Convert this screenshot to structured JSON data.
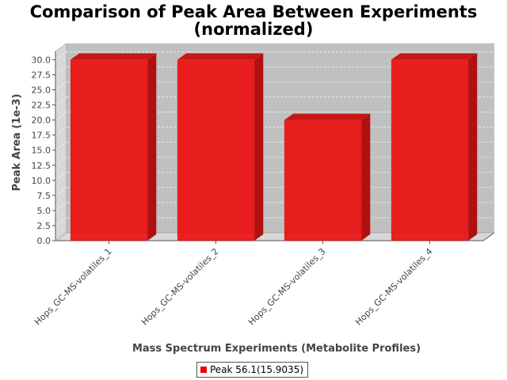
{
  "chart_data": {
    "type": "bar",
    "title": "Comparison of Peak Area Between Experiments",
    "subtitle": "(normalized)",
    "xlabel": "Mass Spectrum Experiments (Metabolite Profiles)",
    "ylabel": "Peak Area (1e-3)",
    "categories": [
      "Hops_GC-MS-volatiles_1",
      "Hops_GC-MS-volatiles_2",
      "Hops_GC-MS-volatiles_3",
      "Hops_GC-MS-volatiles_4"
    ],
    "series": [
      {
        "name": "Peak 56.1(15.9035)",
        "values": [
          30.0,
          30.0,
          20.0,
          30.0
        ],
        "color": "#ee0000"
      }
    ],
    "ylim": [
      0,
      31.4
    ],
    "yticks": [
      "0.0",
      "2.5",
      "5.0",
      "7.5",
      "10.0",
      "12.5",
      "15.0",
      "17.5",
      "20.0",
      "22.5",
      "25.0",
      "27.5",
      "30.0"
    ],
    "grid": true,
    "legend_position": "bottom",
    "colors": {
      "plot_background": "#c0c0c0",
      "wall": "#d8d8d8",
      "bar": "#ee0000"
    }
  }
}
